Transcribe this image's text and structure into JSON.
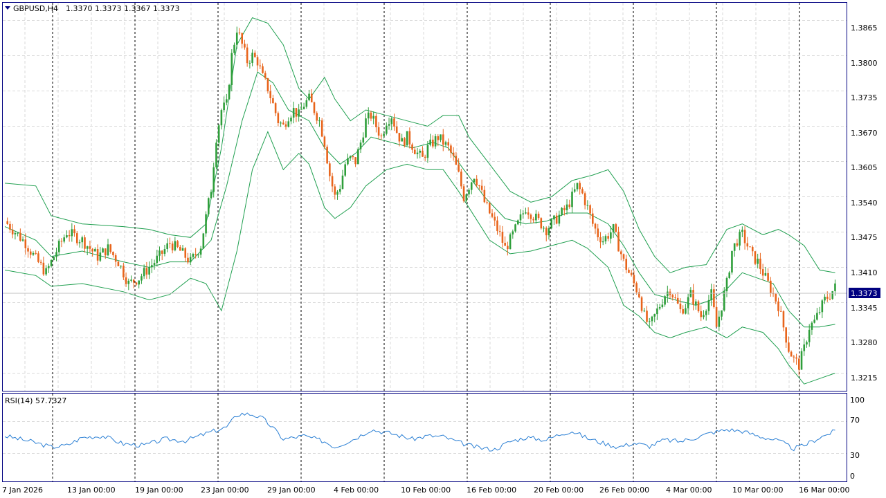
{
  "symbol_header": {
    "symbol": "GBPUSD,H4",
    "ohlc": "1.3370 1.3373 1.3367 1.3373"
  },
  "price_axis": {
    "labels": [
      "1.3865",
      "1.3800",
      "1.3735",
      "1.3670",
      "1.3605",
      "1.3540",
      "1.3475",
      "1.3410",
      "1.3345",
      "1.3280",
      "1.3215"
    ],
    "current_price": "1.3373"
  },
  "rsi": {
    "label": "RSI(14) 57.7327",
    "levels": [
      "100",
      "70",
      "30",
      "0"
    ]
  },
  "time_axis": {
    "labels": [
      "7 Jan 2026",
      "13 Jan 00:00",
      "19 Jan 00:00",
      "23 Jan 00:00",
      "29 Jan 00:00",
      "4 Feb 00:00",
      "10 Feb 00:00",
      "16 Feb 00:00",
      "20 Feb 00:00",
      "26 Feb 00:00",
      "4 Mar 00:00",
      "10 Mar 00:00",
      "16 Mar 00:00"
    ]
  },
  "colors": {
    "bull": "#2e9e3a",
    "bear": "#e8641b",
    "bands": "#1f9f4f",
    "rsi_line": "#2a7fd4",
    "frame": "#000080",
    "grid": "#d9d9d9",
    "separator": "#000000",
    "price_tag_bg": "#000080"
  },
  "chart_data": {
    "type": "candlestick",
    "title": "GBPUSD,H4",
    "ylim": [
      1.3185,
      1.3895
    ],
    "x": [
      "7 Jan 2026",
      "13 Jan 00:00",
      "19 Jan 00:00",
      "23 Jan 00:00",
      "29 Jan 00:00",
      "4 Feb 00:00",
      "10 Feb 00:00",
      "16 Feb 00:00",
      "20 Feb 00:00",
      "26 Feb 00:00",
      "4 Mar 00:00",
      "10 Mar 00:00",
      "16 Mar 00:00"
    ],
    "close_path": [
      [
        0,
        1.3495
      ],
      [
        8,
        1.3455
      ],
      [
        12,
        1.3425
      ],
      [
        16,
        1.34
      ],
      [
        20,
        1.344
      ],
      [
        24,
        1.3475
      ],
      [
        30,
        1.346
      ],
      [
        36,
        1.343
      ],
      [
        40,
        1.3445
      ],
      [
        44,
        1.342
      ],
      [
        48,
        1.338
      ],
      [
        52,
        1.339
      ],
      [
        56,
        1.341
      ],
      [
        60,
        1.343
      ],
      [
        64,
        1.3455
      ],
      [
        68,
        1.344
      ],
      [
        72,
        1.342
      ],
      [
        76,
        1.345
      ],
      [
        80,
        1.3555
      ],
      [
        82,
        1.365
      ],
      [
        84,
        1.37
      ],
      [
        86,
        1.371
      ],
      [
        88,
        1.38
      ],
      [
        90,
        1.385
      ],
      [
        92,
        1.382
      ],
      [
        94,
        1.379
      ],
      [
        96,
        1.38
      ],
      [
        98,
        1.379
      ],
      [
        100,
        1.376
      ],
      [
        102,
        1.374
      ],
      [
        104,
        1.371
      ],
      [
        106,
        1.368
      ],
      [
        108,
        1.367
      ],
      [
        110,
        1.369
      ],
      [
        112,
        1.37
      ],
      [
        114,
        1.369
      ],
      [
        116,
        1.371
      ],
      [
        118,
        1.372
      ],
      [
        120,
        1.37
      ],
      [
        122,
        1.368
      ],
      [
        124,
        1.364
      ],
      [
        126,
        1.358
      ],
      [
        128,
        1.354
      ],
      [
        130,
        1.356
      ],
      [
        132,
        1.36
      ],
      [
        134,
        1.361
      ],
      [
        136,
        1.3605
      ],
      [
        138,
        1.364
      ],
      [
        140,
        1.368
      ],
      [
        142,
        1.369
      ],
      [
        144,
        1.367
      ],
      [
        146,
        1.365
      ],
      [
        148,
        1.368
      ],
      [
        150,
        1.369
      ],
      [
        152,
        1.366
      ],
      [
        154,
        1.364
      ],
      [
        156,
        1.365
      ],
      [
        158,
        1.3635
      ],
      [
        160,
        1.362
      ],
      [
        162,
        1.361
      ],
      [
        164,
        1.363
      ],
      [
        166,
        1.364
      ],
      [
        168,
        1.365
      ],
      [
        170,
        1.364
      ],
      [
        172,
        1.363
      ],
      [
        174,
        1.361
      ],
      [
        176,
        1.358
      ],
      [
        178,
        1.354
      ],
      [
        180,
        1.356
      ],
      [
        182,
        1.358
      ],
      [
        184,
        1.356
      ],
      [
        186,
        1.353
      ],
      [
        188,
        1.351
      ],
      [
        190,
        1.349
      ],
      [
        192,
        1.347
      ],
      [
        194,
        1.3445
      ],
      [
        196,
        1.346
      ],
      [
        198,
        1.348
      ],
      [
        200,
        1.35
      ],
      [
        202,
        1.352
      ],
      [
        204,
        1.351
      ],
      [
        206,
        1.35
      ],
      [
        208,
        1.349
      ],
      [
        210,
        1.348
      ],
      [
        212,
        1.349
      ],
      [
        214,
        1.35
      ],
      [
        216,
        1.351
      ],
      [
        218,
        1.352
      ],
      [
        220,
        1.354
      ],
      [
        222,
        1.356
      ],
      [
        224,
        1.3545
      ],
      [
        226,
        1.352
      ],
      [
        228,
        1.349
      ],
      [
        230,
        1.347
      ],
      [
        232,
        1.346
      ],
      [
        234,
        1.347
      ],
      [
        236,
        1.348
      ],
      [
        238,
        1.345
      ],
      [
        240,
        1.342
      ],
      [
        242,
        1.34
      ],
      [
        244,
        1.338
      ],
      [
        246,
        1.336
      ],
      [
        248,
        1.332
      ],
      [
        250,
        1.33
      ],
      [
        252,
        1.332
      ],
      [
        254,
        1.334
      ],
      [
        256,
        1.336
      ],
      [
        258,
        1.337
      ],
      [
        260,
        1.335
      ],
      [
        262,
        1.333
      ],
      [
        264,
        1.334
      ],
      [
        266,
        1.336
      ],
      [
        268,
        1.334
      ],
      [
        270,
        1.332
      ],
      [
        272,
        1.334
      ],
      [
        274,
        1.336
      ],
      [
        276,
        1.33
      ],
      [
        278,
        1.334
      ],
      [
        280,
        1.338
      ],
      [
        282,
        1.344
      ],
      [
        284,
        1.346
      ],
      [
        286,
        1.347
      ],
      [
        288,
        1.345
      ],
      [
        290,
        1.343
      ],
      [
        292,
        1.342
      ],
      [
        294,
        1.34
      ],
      [
        296,
        1.338
      ],
      [
        298,
        1.336
      ],
      [
        300,
        1.334
      ],
      [
        302,
        1.33
      ],
      [
        304,
        1.326
      ],
      [
        306,
        1.324
      ],
      [
        308,
        1.323
      ],
      [
        310,
        1.326
      ],
      [
        312,
        1.33
      ],
      [
        314,
        1.331
      ],
      [
        316,
        1.333
      ],
      [
        318,
        1.335
      ],
      [
        320,
        1.336
      ],
      [
        322,
        1.3373
      ]
    ],
    "rsi_series": [
      [
        0,
        52
      ],
      [
        10,
        45
      ],
      [
        18,
        38
      ],
      [
        24,
        40
      ],
      [
        30,
        50
      ],
      [
        38,
        52
      ],
      [
        46,
        42
      ],
      [
        54,
        40
      ],
      [
        62,
        48
      ],
      [
        70,
        46
      ],
      [
        78,
        55
      ],
      [
        86,
        63
      ],
      [
        90,
        78
      ],
      [
        92,
        80
      ],
      [
        96,
        79
      ],
      [
        100,
        74
      ],
      [
        104,
        62
      ],
      [
        108,
        48
      ],
      [
        116,
        52
      ],
      [
        124,
        45
      ],
      [
        128,
        38
      ],
      [
        136,
        49
      ],
      [
        142,
        60
      ],
      [
        150,
        55
      ],
      [
        158,
        48
      ],
      [
        164,
        52
      ],
      [
        170,
        51
      ],
      [
        176,
        44
      ],
      [
        180,
        40
      ],
      [
        184,
        37
      ],
      [
        190,
        35
      ],
      [
        196,
        45
      ],
      [
        202,
        50
      ],
      [
        210,
        47
      ],
      [
        216,
        55
      ],
      [
        220,
        58
      ],
      [
        226,
        49
      ],
      [
        232,
        43
      ],
      [
        238,
        38
      ],
      [
        244,
        43
      ],
      [
        250,
        39
      ],
      [
        256,
        47
      ],
      [
        262,
        45
      ],
      [
        268,
        50
      ],
      [
        274,
        56
      ],
      [
        280,
        60
      ],
      [
        286,
        58
      ],
      [
        292,
        52
      ],
      [
        300,
        46
      ],
      [
        306,
        36
      ],
      [
        310,
        40
      ],
      [
        316,
        50
      ],
      [
        322,
        58
      ]
    ],
    "bollinger": {
      "upper": [
        [
          0,
          1.3565
        ],
        [
          12,
          1.356
        ],
        [
          18,
          1.3505
        ],
        [
          30,
          1.349
        ],
        [
          46,
          1.3485
        ],
        [
          56,
          1.348
        ],
        [
          64,
          1.347
        ],
        [
          72,
          1.3465
        ],
        [
          78,
          1.349
        ],
        [
          84,
          1.363
        ],
        [
          90,
          1.382
        ],
        [
          96,
          1.387
        ],
        [
          102,
          1.386
        ],
        [
          108,
          1.382
        ],
        [
          114,
          1.374
        ],
        [
          118,
          1.372
        ],
        [
          124,
          1.376
        ],
        [
          128,
          1.372
        ],
        [
          134,
          1.368
        ],
        [
          140,
          1.37
        ],
        [
          148,
          1.369
        ],
        [
          156,
          1.368
        ],
        [
          164,
          1.367
        ],
        [
          170,
          1.369
        ],
        [
          176,
          1.369
        ],
        [
          180,
          1.365
        ],
        [
          188,
          1.36
        ],
        [
          196,
          1.355
        ],
        [
          204,
          1.353
        ],
        [
          212,
          1.354
        ],
        [
          220,
          1.357
        ],
        [
          228,
          1.358
        ],
        [
          234,
          1.359
        ],
        [
          240,
          1.355
        ],
        [
          246,
          1.348
        ],
        [
          252,
          1.343
        ],
        [
          258,
          1.34
        ],
        [
          264,
          1.341
        ],
        [
          272,
          1.3415
        ],
        [
          280,
          1.348
        ],
        [
          286,
          1.349
        ],
        [
          294,
          1.347
        ],
        [
          300,
          1.348
        ],
        [
          304,
          1.347
        ],
        [
          310,
          1.345
        ],
        [
          316,
          1.3405
        ],
        [
          322,
          1.34
        ]
      ],
      "middle": [
        [
          0,
          1.3485
        ],
        [
          12,
          1.346
        ],
        [
          18,
          1.343
        ],
        [
          30,
          1.344
        ],
        [
          46,
          1.342
        ],
        [
          56,
          1.341
        ],
        [
          64,
          1.342
        ],
        [
          72,
          1.342
        ],
        [
          80,
          1.346
        ],
        [
          86,
          1.356
        ],
        [
          92,
          1.368
        ],
        [
          98,
          1.377
        ],
        [
          104,
          1.375
        ],
        [
          110,
          1.37
        ],
        [
          118,
          1.368
        ],
        [
          124,
          1.363
        ],
        [
          130,
          1.36
        ],
        [
          136,
          1.362
        ],
        [
          142,
          1.365
        ],
        [
          150,
          1.364
        ],
        [
          158,
          1.363
        ],
        [
          166,
          1.364
        ],
        [
          172,
          1.363
        ],
        [
          178,
          1.359
        ],
        [
          186,
          1.354
        ],
        [
          194,
          1.35
        ],
        [
          202,
          1.349
        ],
        [
          210,
          1.3495
        ],
        [
          218,
          1.351
        ],
        [
          226,
          1.351
        ],
        [
          234,
          1.349
        ],
        [
          240,
          1.345
        ],
        [
          246,
          1.34
        ],
        [
          252,
          1.336
        ],
        [
          260,
          1.335
        ],
        [
          268,
          1.334
        ],
        [
          274,
          1.335
        ],
        [
          280,
          1.337
        ],
        [
          286,
          1.34
        ],
        [
          292,
          1.339
        ],
        [
          298,
          1.338
        ],
        [
          304,
          1.333
        ],
        [
          310,
          1.33
        ],
        [
          316,
          1.33
        ],
        [
          322,
          1.3305
        ]
      ],
      "lower": [
        [
          0,
          1.3405
        ],
        [
          12,
          1.3395
        ],
        [
          18,
          1.3375
        ],
        [
          30,
          1.338
        ],
        [
          46,
          1.3365
        ],
        [
          56,
          1.335
        ],
        [
          64,
          1.336
        ],
        [
          72,
          1.339
        ],
        [
          78,
          1.338
        ],
        [
          84,
          1.333
        ],
        [
          90,
          1.344
        ],
        [
          96,
          1.359
        ],
        [
          102,
          1.366
        ],
        [
          108,
          1.359
        ],
        [
          114,
          1.362
        ],
        [
          118,
          1.36
        ],
        [
          124,
          1.352
        ],
        [
          128,
          1.35
        ],
        [
          134,
          1.352
        ],
        [
          140,
          1.356
        ],
        [
          148,
          1.359
        ],
        [
          156,
          1.36
        ],
        [
          164,
          1.359
        ],
        [
          170,
          1.359
        ],
        [
          176,
          1.355
        ],
        [
          180,
          1.352
        ],
        [
          188,
          1.346
        ],
        [
          196,
          1.3435
        ],
        [
          204,
          1.344
        ],
        [
          212,
          1.345
        ],
        [
          220,
          1.346
        ],
        [
          226,
          1.3445
        ],
        [
          234,
          1.341
        ],
        [
          240,
          1.334
        ],
        [
          246,
          1.332
        ],
        [
          252,
          1.329
        ],
        [
          258,
          1.328
        ],
        [
          264,
          1.329
        ],
        [
          272,
          1.33
        ],
        [
          280,
          1.328
        ],
        [
          286,
          1.33
        ],
        [
          294,
          1.329
        ],
        [
          300,
          1.326
        ],
        [
          304,
          1.323
        ],
        [
          310,
          1.3195
        ],
        [
          316,
          1.3205
        ],
        [
          322,
          1.3215
        ]
      ]
    }
  }
}
